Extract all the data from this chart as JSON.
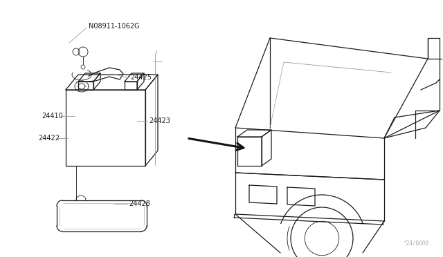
{
  "bg_color": "#ffffff",
  "line_color": "#1a1a1a",
  "gray_color": "#999999",
  "fig_width": 6.4,
  "fig_height": 3.72,
  "dpi": 100,
  "watermark": "^24/Q000"
}
